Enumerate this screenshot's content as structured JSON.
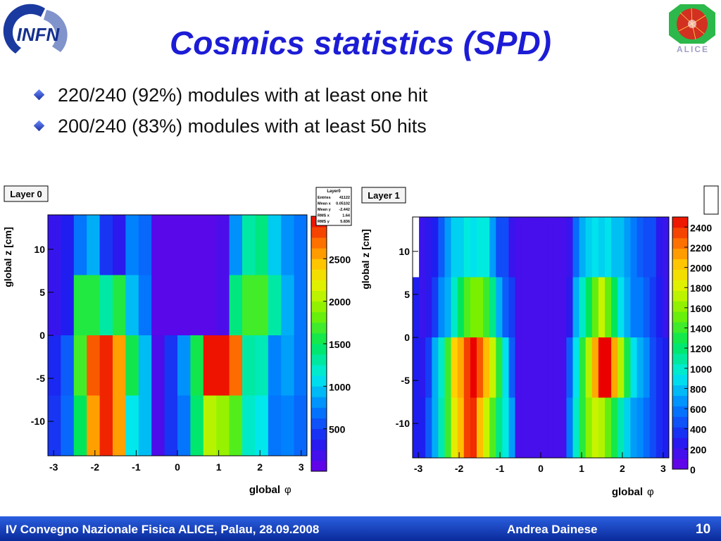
{
  "slide": {
    "title": "Cosmics statistics (SPD)",
    "bullets": [
      "220/240 (92%) modules with at least one hit",
      "200/240 (83%) modules with at least 50 hits"
    ],
    "footer_left": "IV Convegno Nazionale Fisica ALICE, Palau, 28.09.2008",
    "footer_author": "Andrea Dainese",
    "page_number": "10",
    "logo_left_text": "INFN",
    "logo_right_text": "ALICE"
  },
  "chart_data": [
    {
      "type": "heatmap",
      "title": "Layer 0",
      "xlabel": "global",
      "xlabel_symbol": "φ",
      "ylabel": "global z [cm]",
      "xlim": [
        -3.14,
        3.14
      ],
      "ylim": [
        -14,
        14
      ],
      "xticks": [
        "-3",
        "-2",
        "-1",
        "0",
        "1",
        "2",
        "3"
      ],
      "yticks": [
        "10",
        "5",
        "0",
        "-5",
        "-10"
      ],
      "zlim": [
        0,
        3000
      ],
      "zticks": [
        "2500",
        "2000",
        "1500",
        "1000",
        "500"
      ],
      "x_bins": 20,
      "y_edges": [
        14,
        7,
        0,
        -7,
        -14
      ],
      "stats_box": {
        "title": "Layer0",
        "rows": [
          [
            "Entries",
            "41122"
          ],
          [
            "Mean x",
            "0.05102"
          ],
          [
            "Mean y",
            "-2.442"
          ],
          [
            "RMS x",
            "1.64"
          ],
          [
            "RMS y",
            "5.836"
          ]
        ]
      },
      "z": [
        [
          250,
          350,
          700,
          900,
          450,
          300,
          750,
          650,
          100,
          100,
          100,
          100,
          100,
          150,
          800,
          1300,
          1400,
          1000,
          800,
          700
        ],
        [
          250,
          350,
          1600,
          1600,
          1300,
          1600,
          950,
          700,
          100,
          100,
          100,
          100,
          100,
          150,
          1400,
          1700,
          1700,
          1300,
          900,
          700
        ],
        [
          400,
          600,
          1700,
          2750,
          2900,
          2550,
          1550,
          950,
          150,
          450,
          800,
          1550,
          2950,
          2950,
          2700,
          1300,
          1250,
          750,
          850,
          700
        ],
        [
          450,
          650,
          1500,
          2550,
          2900,
          2550,
          1100,
          950,
          150,
          450,
          700,
          1450,
          2050,
          1950,
          1750,
          1200,
          1100,
          700,
          750,
          650
        ]
      ]
    },
    {
      "type": "heatmap",
      "title": "Layer 1",
      "xlabel": "global",
      "xlabel_symbol": "φ",
      "ylabel": "global z [cm]",
      "xlim": [
        -3.14,
        3.14
      ],
      "ylim": [
        -14,
        14
      ],
      "xticks": [
        "-3",
        "-2",
        "-1",
        "0",
        "1",
        "2",
        "3"
      ],
      "yticks": [
        "10",
        "5",
        "0",
        "-5",
        "-10"
      ],
      "zlim": [
        0,
        2500
      ],
      "zticks": [
        "2400",
        "2200",
        "2000",
        "1800",
        "1600",
        "1400",
        "1200",
        "1000",
        "800",
        "600",
        "400",
        "200",
        "0"
      ],
      "x_bins": 40,
      "y_edges": [
        14,
        7,
        0,
        -7,
        -14
      ],
      "z": [
        [
          0,
          200,
          250,
          300,
          500,
          700,
          850,
          850,
          950,
          900,
          950,
          950,
          700,
          450,
          450,
          200,
          150,
          150,
          150,
          150,
          150,
          150,
          150,
          150,
          200,
          550,
          750,
          850,
          900,
          850,
          900,
          800,
          800,
          700,
          600,
          500,
          450,
          450,
          250,
          200
        ],
        [
          300,
          200,
          250,
          400,
          650,
          750,
          1000,
          1250,
          1450,
          1550,
          1550,
          1400,
          1150,
          750,
          500,
          400,
          150,
          150,
          150,
          150,
          150,
          150,
          150,
          150,
          250,
          750,
          1000,
          1250,
          1500,
          1750,
          1500,
          1250,
          900,
          750,
          600,
          600,
          500,
          400,
          300,
          200
        ],
        [
          300,
          250,
          400,
          750,
          1000,
          1400,
          2000,
          2100,
          2350,
          2500,
          2300,
          2050,
          1750,
          1350,
          900,
          500,
          150,
          150,
          150,
          150,
          150,
          150,
          150,
          150,
          500,
          900,
          1350,
          1700,
          2100,
          2500,
          2500,
          2100,
          1700,
          1300,
          900,
          750,
          650,
          450,
          350,
          300
        ],
        [
          300,
          300,
          500,
          750,
          1050,
          1400,
          1850,
          2050,
          2350,
          2400,
          2050,
          1750,
          1450,
          1150,
          950,
          700,
          150,
          150,
          150,
          150,
          150,
          150,
          150,
          150,
          600,
          1000,
          1350,
          1600,
          1750,
          1700,
          1500,
          1300,
          1050,
          850,
          700,
          650,
          550,
          450,
          350,
          300
        ]
      ]
    }
  ]
}
